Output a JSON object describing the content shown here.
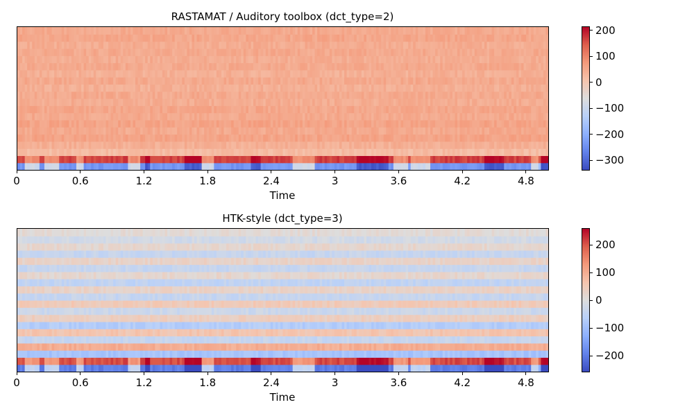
{
  "chart_data": [
    {
      "type": "heatmap",
      "title": "RASTAMAT / Auditory toolbox (dct_type=2)",
      "xlabel": "Time",
      "ylabel": "",
      "x_ticks": [
        0,
        0.6,
        1.2,
        1.8,
        2.4,
        3,
        3.6,
        4.2,
        4.8
      ],
      "x_tick_labels": [
        "0",
        "0.6",
        "1.2",
        "1.8",
        "2.4",
        "3",
        "3.6",
        "4.2",
        "4.8"
      ],
      "xlim": [
        0,
        5.01
      ],
      "n_coefficients": 20,
      "colormap": "coolwarm",
      "vmin": -340,
      "vmax": 215,
      "colorbar_ticks": [
        200,
        100,
        0,
        -100,
        -200,
        -300
      ],
      "colorbar_tick_labels": [
        "200",
        "100",
        "0",
        "−100",
        "−200",
        "−300"
      ],
      "row_values_bottom_to_top": [
        -240,
        170,
        20,
        40,
        60,
        50,
        60,
        50,
        55,
        45,
        50,
        40,
        50,
        40,
        50,
        45,
        50,
        45,
        55,
        50
      ]
    },
    {
      "type": "heatmap",
      "title": "HTK-style (dct_type=3)",
      "xlabel": "Time",
      "ylabel": "",
      "x_ticks": [
        0,
        0.6,
        1.2,
        1.8,
        2.4,
        3,
        3.6,
        4.2,
        4.8
      ],
      "x_tick_labels": [
        "0",
        "0.6",
        "1.2",
        "1.8",
        "2.4",
        "3",
        "3.6",
        "4.2",
        "4.8"
      ],
      "xlim": [
        0,
        5.01
      ],
      "n_coefficients": 20,
      "colormap": "coolwarm",
      "vmin": -260,
      "vmax": 260,
      "colorbar_ticks": [
        200,
        100,
        0,
        -100,
        -200
      ],
      "colorbar_tick_labels": [
        "200",
        "100",
        "0",
        "−100",
        "−200"
      ],
      "row_values_bottom_to_top": [
        -200,
        210,
        -90,
        100,
        -40,
        60,
        -70,
        40,
        -30,
        50,
        -40,
        30,
        -50,
        20,
        -40,
        30,
        -40,
        20,
        -20,
        10
      ]
    }
  ]
}
